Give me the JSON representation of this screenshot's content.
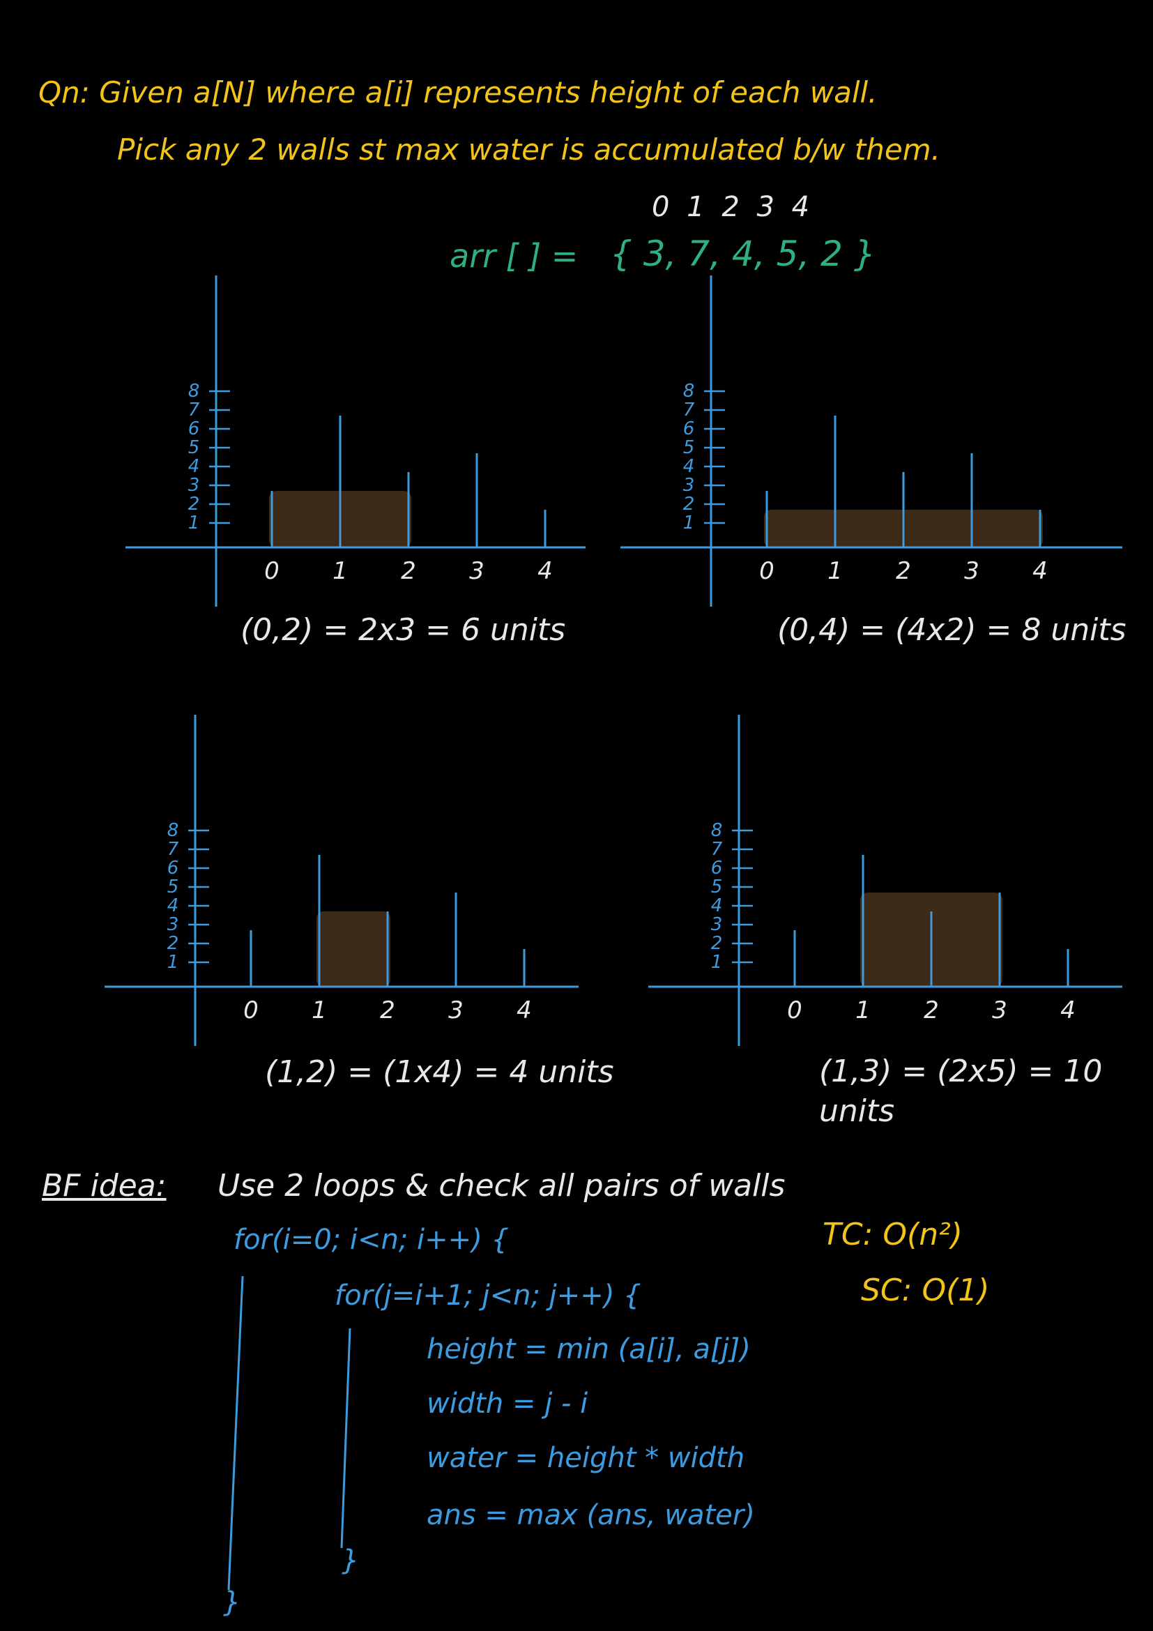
{
  "question": {
    "line1": "Qn: Given a[N] where a[i] represents height of each wall.",
    "line2": "Pick any 2 walls st max water is accumulated b/w them."
  },
  "array": {
    "indices": "0  1  2  3  4",
    "label": "arr [ ] =",
    "values_text": "{ 3, 7, 4, 5, 2 }"
  },
  "chart_data": [
    {
      "type": "bar",
      "categories": [
        "0",
        "1",
        "2",
        "3",
        "4"
      ],
      "values": [
        3,
        7,
        4,
        5,
        2
      ],
      "highlight": [
        0,
        2
      ],
      "water_level": 3,
      "yticks": [
        "1",
        "2",
        "3",
        "4",
        "5",
        "6",
        "7",
        "8"
      ],
      "caption": "(0,2) = 2x3 = 6 units"
    },
    {
      "type": "bar",
      "categories": [
        "0",
        "1",
        "2",
        "3",
        "4"
      ],
      "values": [
        3,
        7,
        4,
        5,
        2
      ],
      "highlight": [
        0,
        4
      ],
      "water_level": 2,
      "yticks": [
        "1",
        "2",
        "3",
        "4",
        "5",
        "6",
        "7",
        "8"
      ],
      "caption": "(0,4) = (4x2) = 8 units"
    },
    {
      "type": "bar",
      "categories": [
        "0",
        "1",
        "2",
        "3",
        "4"
      ],
      "values": [
        3,
        7,
        4,
        5,
        2
      ],
      "highlight": [
        1,
        2
      ],
      "water_level": 4,
      "yticks": [
        "1",
        "2",
        "3",
        "4",
        "5",
        "6",
        "7",
        "8"
      ],
      "caption": "(1,2) = (1x4) = 4 units"
    },
    {
      "type": "bar",
      "categories": [
        "0",
        "1",
        "2",
        "3",
        "4"
      ],
      "values": [
        3,
        7,
        4,
        5,
        2
      ],
      "highlight": [
        1,
        3
      ],
      "water_level": 5,
      "yticks": [
        "1",
        "2",
        "3",
        "4",
        "5",
        "6",
        "7",
        "8"
      ],
      "caption": "(1,3) = (2x5) = 10 units"
    }
  ],
  "bf": {
    "title": "BF idea:",
    "desc": "Use 2 loops & check all pairs of walls",
    "outer_loop": "for(i=0; i<n; i++) {",
    "inner_loop": "for(j=i+1; j<n; j++) {",
    "height": "height = min (a[i], a[j])",
    "width": "width = j - i",
    "water": "water = height * width",
    "ans": "ans = max (ans, water)",
    "close_inner": "}",
    "close_outer": "}",
    "tc": "TC: O(n²)",
    "sc": "SC: O(1)"
  },
  "colors": {
    "question": "#f2c318",
    "array": "#2fb07f",
    "axis": "#3d9be0",
    "water": "#3d2b17",
    "text": "#e8e8e8"
  }
}
